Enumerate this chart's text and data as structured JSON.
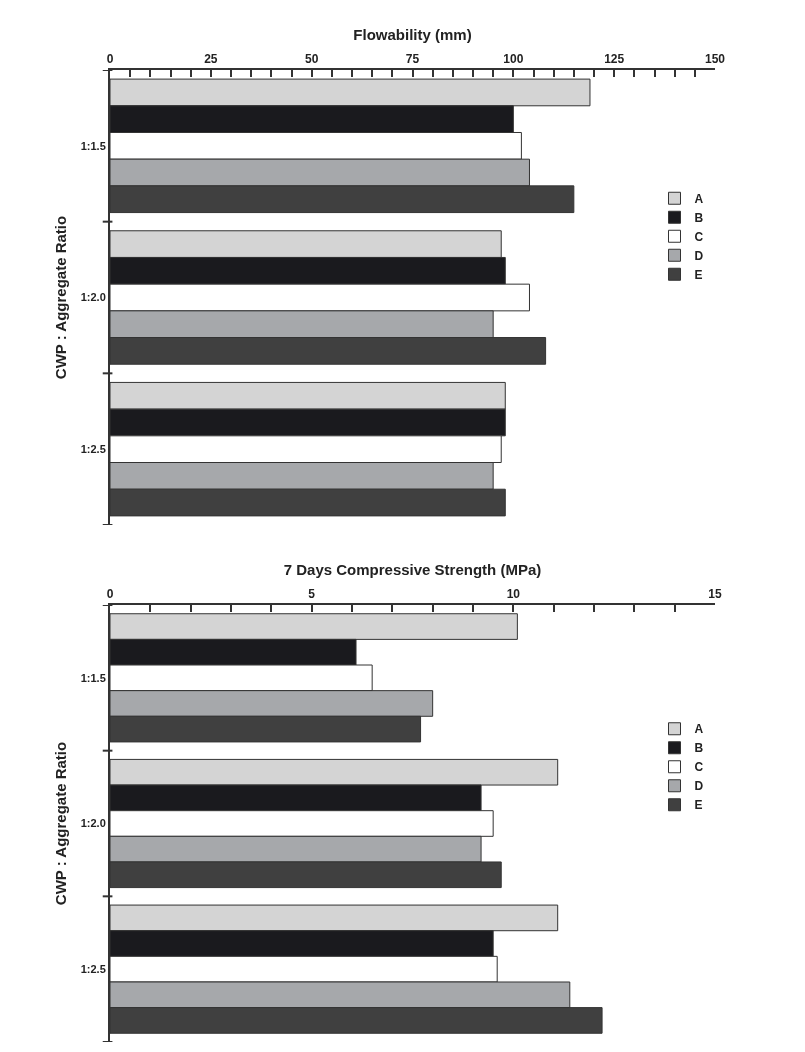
{
  "chart_data": [
    {
      "type": "bar",
      "orientation": "horizontal",
      "xlabel": "Flowability (mm)",
      "ylabel": "CWP : Aggregate Ratio",
      "categories": [
        "1:1.5",
        "1:2.0",
        "1:2.5"
      ],
      "xlim": [
        0,
        150
      ],
      "xticks": [
        0,
        {
          "value": 5,
          "label": null
        },
        {
          "value": 10,
          "label": null
        },
        {
          "value": 15,
          "label": null
        },
        {
          "value": 20,
          "label": null
        },
        25,
        {
          "value": 30,
          "label": null
        },
        {
          "value": 35,
          "label": null
        },
        {
          "value": 40,
          "label": null
        },
        {
          "value": 45,
          "label": null
        },
        50,
        {
          "value": 55,
          "label": null
        },
        {
          "value": 60,
          "label": null
        },
        {
          "value": 65,
          "label": null
        },
        {
          "value": 70,
          "label": null
        },
        75,
        {
          "value": 80,
          "label": null
        },
        {
          "value": 85,
          "label": null
        },
        {
          "value": 90,
          "label": null
        },
        {
          "value": 95,
          "label": null
        },
        100,
        {
          "value": 105,
          "label": null
        },
        {
          "value": 110,
          "label": null
        },
        {
          "value": 115,
          "label": null
        },
        {
          "value": 120,
          "label": null
        },
        125,
        {
          "value": 130,
          "label": null
        },
        {
          "value": 135,
          "label": null
        },
        {
          "value": 140,
          "label": null
        },
        {
          "value": 145,
          "label": null
        },
        150
      ],
      "grid": false,
      "legend": "right",
      "series": [
        {
          "name": "A",
          "color": "#d4d4d4",
          "values": [
            119,
            97,
            98
          ]
        },
        {
          "name": "B",
          "color": "#1a1a1e",
          "values": [
            100,
            98,
            98
          ]
        },
        {
          "name": "C",
          "color": "#ffffff",
          "values": [
            102,
            104,
            97
          ]
        },
        {
          "name": "D",
          "color": "#a6a8ab",
          "values": [
            104,
            95,
            95
          ]
        },
        {
          "name": "E",
          "color": "#404040",
          "values": [
            115,
            108,
            98
          ]
        }
      ]
    },
    {
      "type": "bar",
      "orientation": "horizontal",
      "xlabel": "7 Days Compressive Strength (MPa)",
      "ylabel": "CWP : Aggregate Ratio",
      "categories": [
        "1:1.5",
        "1:2.0",
        "1:2.5"
      ],
      "xlim": [
        0,
        15
      ],
      "xticks": [
        0,
        {
          "value": 1,
          "label": null
        },
        {
          "value": 2,
          "label": null
        },
        {
          "value": 3,
          "label": null
        },
        {
          "value": 4,
          "label": null
        },
        5,
        {
          "value": 6,
          "label": null
        },
        {
          "value": 7,
          "label": null
        },
        {
          "value": 8,
          "label": null
        },
        {
          "value": 9,
          "label": null
        },
        10,
        {
          "value": 11,
          "label": null
        },
        {
          "value": 12,
          "label": null
        },
        {
          "value": 13,
          "label": null
        },
        {
          "value": 14,
          "label": null
        },
        15
      ],
      "grid": false,
      "legend": "right",
      "series": [
        {
          "name": "A",
          "color": "#d4d4d4",
          "values": [
            10.1,
            11.1,
            11.1
          ]
        },
        {
          "name": "B",
          "color": "#1a1a1e",
          "values": [
            6.1,
            9.2,
            9.5
          ]
        },
        {
          "name": "C",
          "color": "#ffffff",
          "values": [
            6.5,
            9.5,
            9.6
          ]
        },
        {
          "name": "D",
          "color": "#a6a8ab",
          "values": [
            8.0,
            9.2,
            11.4
          ]
        },
        {
          "name": "E",
          "color": "#404040",
          "values": [
            7.7,
            9.7,
            12.2
          ]
        }
      ]
    }
  ]
}
